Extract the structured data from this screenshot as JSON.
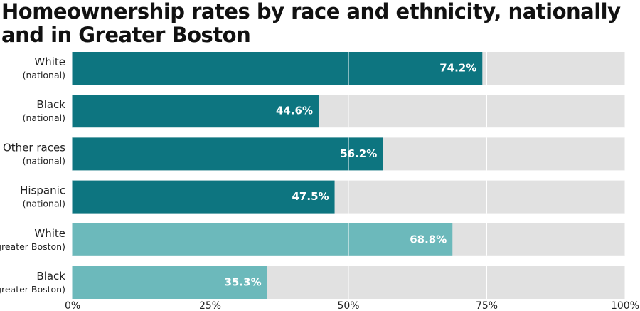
{
  "chart_data": {
    "type": "barh",
    "title": "Homeownership rates by race and ethnicity, nationally and in Greater Boston",
    "categories": [
      "White\n(national)",
      "Black\n(national)",
      "Other races\n(national)",
      "Hispanic\n(national)",
      "White\n(greater Boston)",
      "Black\n(greater Boston)"
    ],
    "values": [
      74.2,
      44.6,
      56.2,
      47.5,
      68.8,
      35.3
    ],
    "value_labels": [
      "74.2%",
      "44.6%",
      "56.2%",
      "47.5%",
      "68.8%",
      "35.3%"
    ],
    "colors": [
      "#0d7580",
      "#0d7580",
      "#0d7580",
      "#0d7580",
      "#6cb9bb",
      "#6cb9bb"
    ],
    "track_color": "#e1e1e1",
    "xlim": [
      0,
      100
    ],
    "xticks": [
      {
        "value": 0,
        "label": "0%"
      },
      {
        "value": 25,
        "label": "25%"
      },
      {
        "value": 50,
        "label": "50%"
      },
      {
        "value": 75,
        "label": "75%"
      },
      {
        "value": 100,
        "label": "100%"
      }
    ],
    "grid": true
  }
}
